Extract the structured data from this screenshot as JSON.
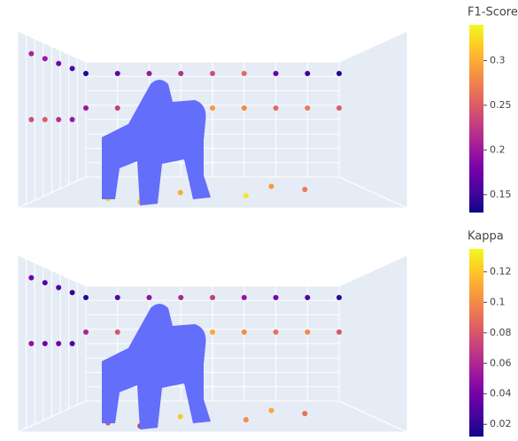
{
  "chart_data": [
    {
      "type": "scatter3d",
      "colorbar_title": "F1-Score",
      "colorscale": [
        "#0d0887",
        "#46039f",
        "#7201a8",
        "#9c179e",
        "#bd3786",
        "#d8576b",
        "#ed7953",
        "#fb9f3a",
        "#fdca26",
        "#f0f921"
      ],
      "clim": [
        0.13,
        0.34
      ],
      "cticks": [
        0.15,
        0.2,
        0.25,
        0.3
      ],
      "points": {
        "x": [
          0,
          1.25,
          2.5,
          3.75,
          5,
          6.25,
          7.5,
          8.75,
          10,
          0,
          1.25,
          2.5,
          3.75,
          5,
          6.25,
          7.5,
          8.75,
          10,
          0,
          0,
          0,
          0,
          0,
          0,
          0,
          0,
          2,
          4,
          6,
          8,
          3,
          7
        ],
        "y": [
          10,
          10,
          10,
          10,
          10,
          10,
          10,
          10,
          10,
          10,
          10,
          10,
          10,
          10,
          10,
          10,
          10,
          10,
          2,
          4,
          6,
          8,
          2,
          4,
          6,
          8,
          3,
          5,
          4,
          6,
          2,
          7
        ],
        "z": [
          9,
          9,
          9,
          9,
          9,
          9,
          9,
          9,
          9,
          6,
          6,
          6,
          6,
          6,
          6,
          6,
          6,
          6,
          9,
          9,
          9,
          9,
          5,
          5,
          5,
          5,
          0,
          0,
          0,
          0,
          0,
          0
        ],
        "values": [
          0.14,
          0.17,
          0.2,
          0.22,
          0.24,
          0.26,
          0.17,
          0.15,
          0.14,
          0.2,
          0.23,
          0.25,
          0.27,
          0.29,
          0.28,
          0.26,
          0.27,
          0.25,
          0.21,
          0.2,
          0.18,
          0.16,
          0.24,
          0.25,
          0.22,
          0.2,
          0.32,
          0.3,
          0.33,
          0.27,
          0.31,
          0.29
        ]
      }
    },
    {
      "type": "scatter3d",
      "colorbar_title": "Kappa",
      "colorscale": [
        "#0d0887",
        "#46039f",
        "#7201a8",
        "#9c179e",
        "#bd3786",
        "#d8576b",
        "#ed7953",
        "#fb9f3a",
        "#fdca26",
        "#f0f921"
      ],
      "clim": [
        0.012,
        0.135
      ],
      "cticks": [
        0.02,
        0.04,
        0.06,
        0.08,
        0.1,
        0.12
      ],
      "points": {
        "x": [
          0,
          1.25,
          2.5,
          3.75,
          5,
          6.25,
          7.5,
          8.75,
          10,
          0,
          1.25,
          2.5,
          3.75,
          5,
          6.25,
          7.5,
          8.75,
          10,
          0,
          0,
          0,
          0,
          0,
          0,
          0,
          0,
          2,
          4,
          6,
          8,
          3,
          7
        ],
        "y": [
          10,
          10,
          10,
          10,
          10,
          10,
          10,
          10,
          10,
          10,
          10,
          10,
          10,
          10,
          10,
          10,
          10,
          10,
          2,
          4,
          6,
          8,
          2,
          4,
          6,
          8,
          3,
          5,
          4,
          6,
          2,
          7
        ],
        "z": [
          9,
          9,
          9,
          9,
          9,
          9,
          9,
          9,
          9,
          6,
          6,
          6,
          6,
          6,
          6,
          6,
          6,
          6,
          9,
          9,
          9,
          9,
          5,
          5,
          5,
          5,
          0,
          0,
          0,
          0,
          0,
          0
        ],
        "values": [
          0.02,
          0.03,
          0.05,
          0.06,
          0.07,
          0.05,
          0.04,
          0.03,
          0.02,
          0.06,
          0.08,
          0.09,
          0.1,
          0.11,
          0.1,
          0.09,
          0.1,
          0.08,
          0.04,
          0.03,
          0.03,
          0.02,
          0.05,
          0.04,
          0.04,
          0.03,
          0.08,
          0.12,
          0.1,
          0.09,
          0.07,
          0.11
        ]
      }
    }
  ]
}
